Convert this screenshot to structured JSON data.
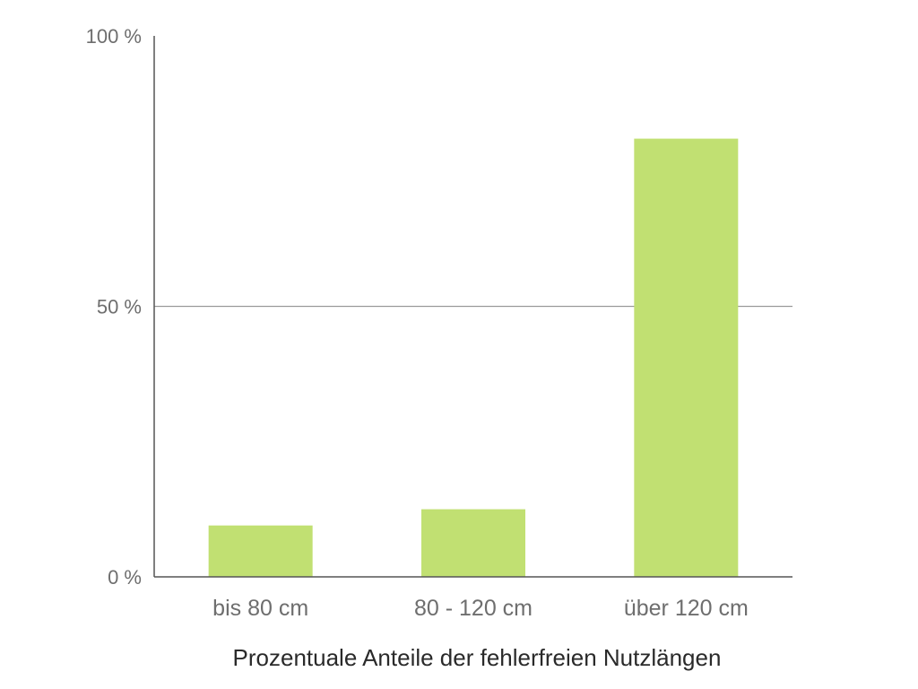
{
  "chart_data": {
    "type": "bar",
    "categories": [
      "bis 80 cm",
      "80 - 120 cm",
      "über 120 cm"
    ],
    "values": [
      9.5,
      12.5,
      81
    ],
    "xlabel": "Prozentuale Anteile der fehlerfreien Nutzlängen",
    "ylabel": "",
    "ylim": [
      0,
      100
    ],
    "y_ticks": [
      {
        "value": 0,
        "label": "0 %"
      },
      {
        "value": 50,
        "label": "50 %"
      },
      {
        "value": 100,
        "label": "100 %"
      }
    ],
    "gridlines": [
      50
    ],
    "grid": true,
    "legend": "none",
    "colors": {
      "bar": "#c1e072",
      "axis": "#555555",
      "grid": "#9a9a9a",
      "tick_text": "#6e6e6e",
      "label_text": "#2a2a2a"
    }
  }
}
